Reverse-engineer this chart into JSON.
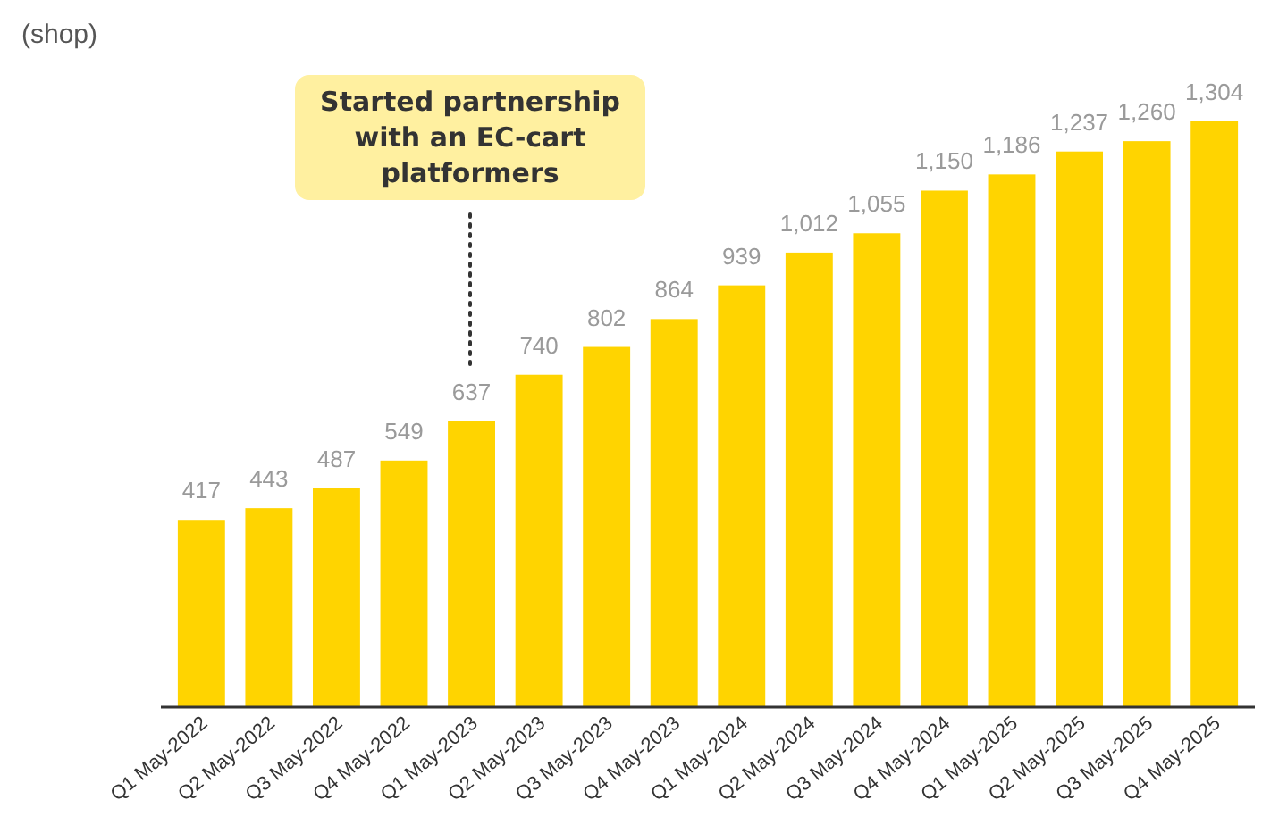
{
  "chart_data": {
    "type": "bar",
    "ylabel": "(shop)",
    "categories": [
      "Q1 May-2022",
      "Q2 May-2022",
      "Q3 May-2022",
      "Q4 May-2022",
      "Q1 May-2023",
      "Q2 May-2023",
      "Q3 May-2023",
      "Q4 May-2023",
      "Q1 May-2024",
      "Q2 May-2024",
      "Q3 May-2024",
      "Q4 May-2024",
      "Q1 May-2025",
      "Q2 May-2025",
      "Q3 May-2025",
      "Q4 May-2025"
    ],
    "values": [
      417,
      443,
      487,
      549,
      637,
      740,
      802,
      864,
      939,
      1012,
      1055,
      1150,
      1186,
      1237,
      1260,
      1304
    ],
    "value_labels": [
      "417",
      "443",
      "487",
      "549",
      "637",
      "740",
      "802",
      "864",
      "939",
      "1,012",
      "1,055",
      "1,150",
      "1,186",
      "1,237",
      "1,260",
      "1,304"
    ],
    "color": "#ffd400",
    "annotations": [
      "Started partnership\nwith an EC-cart\nplatformers"
    ]
  }
}
